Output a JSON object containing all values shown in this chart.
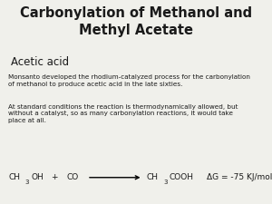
{
  "title_line1": "Carbonylation of Methanol and",
  "title_line2": "Methyl Acetate",
  "subtitle": "Acetic acid",
  "body1": "Monsanto developed the rhodium-catalyzed process for the carbonylation\nof methanol to produce acetic acid in the late sixties.",
  "body2": "At standard conditions the reaction is thermodynamically allowed, but\nwithout a catalyst, so as many carbonylation reactions, it would take\nplace at all.",
  "rxn_delta_g": "ΔG = -75 KJ/mol",
  "bg_color": "#f0f0eb",
  "text_color": "#1a1a1a",
  "title_fontsize": 10.5,
  "subtitle_fontsize": 8.5,
  "body_fontsize": 5.2,
  "rxn_fontsize": 6.5
}
